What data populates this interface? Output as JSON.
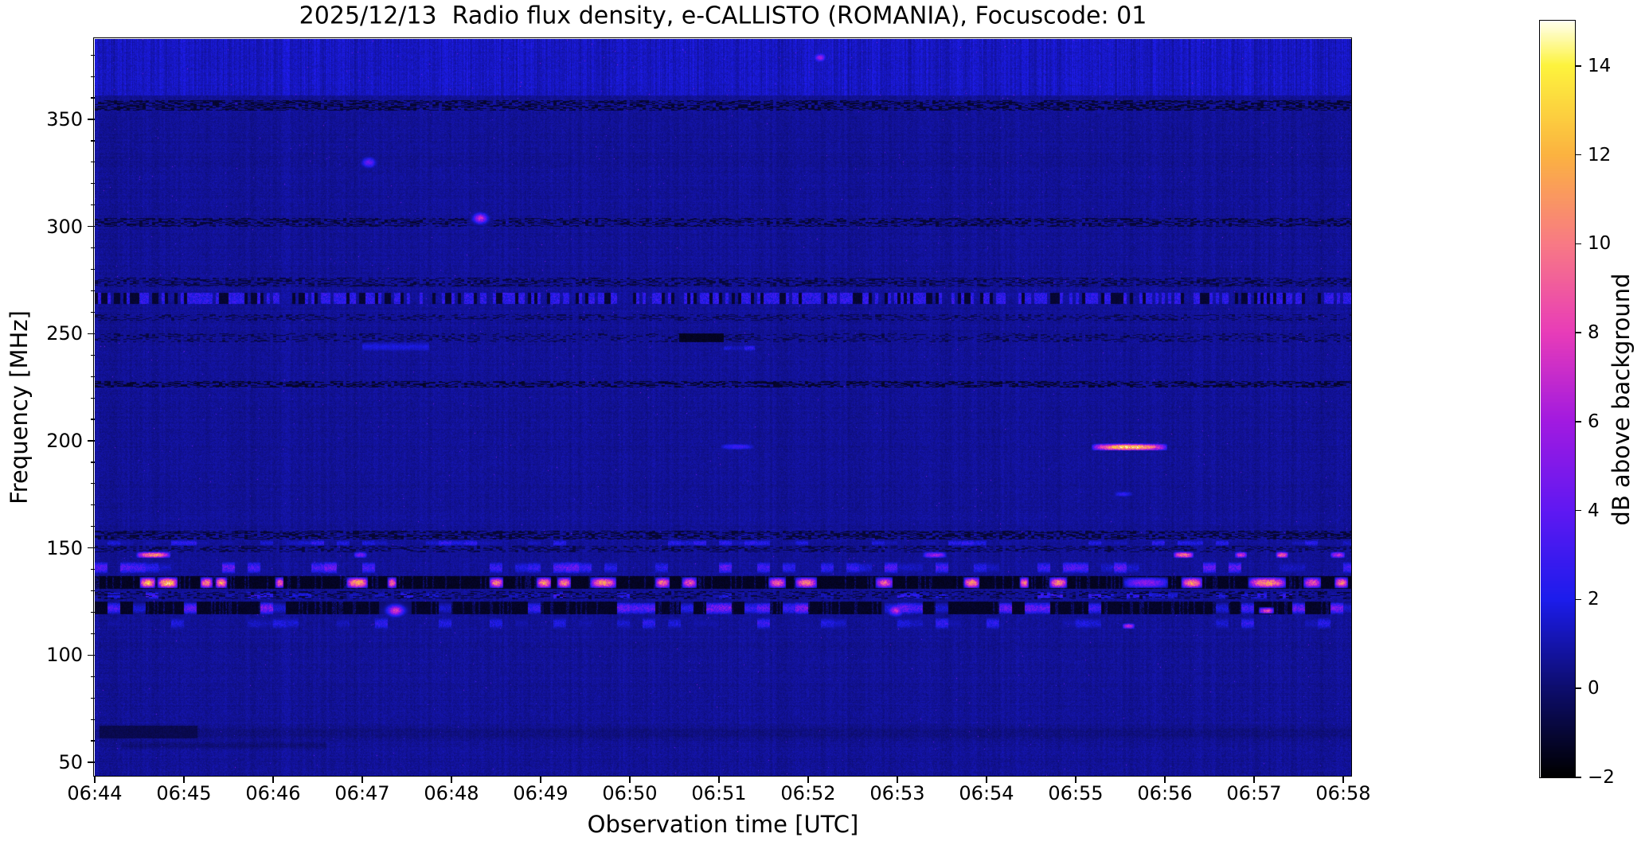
{
  "figure": {
    "title": "2025/12/13  Radio flux density, e-CALLISTO (ROMANIA), Focuscode: 01",
    "xlabel": "Observation time [UTC]",
    "ylabel": "Frequency [MHz]",
    "colorbar_label": "dB above background"
  },
  "chart_data": {
    "type": "heatmap",
    "subtype": "radio-spectrogram",
    "title": "2025/12/13  Radio flux density, e-CALLISTO (ROMANIA), Focuscode: 01",
    "xlabel": "Observation time [UTC]",
    "ylabel": "Frequency [MHz]",
    "colorbar_label": "dB above background",
    "x_tick_labels": [
      "06:44",
      "06:45",
      "06:46",
      "06:47",
      "06:48",
      "06:49",
      "06:50",
      "06:51",
      "06:52",
      "06:53",
      "06:54",
      "06:55",
      "06:56",
      "06:57",
      "06:58"
    ],
    "x_range_minutes_after_0644": [
      0,
      14.09
    ],
    "y_ticks_mhz": [
      50,
      100,
      150,
      200,
      250,
      300,
      350
    ],
    "y_minor_step_mhz": 10,
    "y_range_mhz": [
      43.7,
      387.5
    ],
    "grid": false,
    "colorbar": {
      "ticks": [
        -2,
        0,
        2,
        4,
        6,
        8,
        10,
        12,
        14
      ],
      "range": [
        -2,
        15
      ],
      "side": "right"
    },
    "colormap": {
      "name": "gnuplot2-like",
      "stops": [
        [
          0.0,
          "#000000"
        ],
        [
          0.118,
          "#0d0d6e"
        ],
        [
          0.235,
          "#1c1cec"
        ],
        [
          0.353,
          "#6018f2"
        ],
        [
          0.471,
          "#a21ae0"
        ],
        [
          0.588,
          "#e83cb8"
        ],
        [
          0.706,
          "#f87a84"
        ],
        [
          0.824,
          "#fbb340"
        ],
        [
          0.941,
          "#fdf33d"
        ],
        [
          1.0,
          "#ffffee"
        ]
      ]
    },
    "background_noise_db": {
      "mean": 0.45,
      "spread": 0.7,
      "striated_columns": true
    },
    "features": [
      {
        "kind": "glow",
        "name": "striated-bright-band-top",
        "f": [
          361,
          387.5
        ],
        "t": [
          0,
          14.09
        ],
        "level": 0.75
      },
      {
        "kind": "dashrow",
        "name": "dark-speckle-line-357MHz",
        "f": [
          354,
          359
        ],
        "t": [
          0,
          14.09
        ],
        "level": -1.3,
        "density": 0.5
      },
      {
        "kind": "dot",
        "name": "pink-speck",
        "t": 8.13,
        "f": 379,
        "level": 6,
        "rt": 0.04,
        "rf": 1.2
      },
      {
        "kind": "dashrow",
        "name": "rfi-line-302MHz",
        "f": [
          300,
          304
        ],
        "t": [
          0,
          14.09
        ],
        "level": -1.2,
        "density": 0.45
      },
      {
        "kind": "dot",
        "name": "magenta-dot-304MHz-0648",
        "t": 4.32,
        "f": 304,
        "level": 7.5,
        "rt": 0.05,
        "rf": 1.5
      },
      {
        "kind": "dot",
        "name": "blue-dot-330MHz-0647",
        "t": 3.07,
        "f": 330,
        "level": 4.5,
        "rt": 0.05,
        "rf": 1.5
      },
      {
        "kind": "dashrow",
        "name": "rfi-line-274MHz",
        "f": [
          272,
          276
        ],
        "t": [
          0,
          14.09
        ],
        "level": -1.1,
        "density": 0.4
      },
      {
        "kind": "noisy",
        "name": "rfi-line-267MHz-bright-dark-mix",
        "f": [
          264,
          269
        ],
        "t": [
          0,
          14.09
        ],
        "level": 2.6
      },
      {
        "kind": "dashrow",
        "name": "rfi-line-258MHz",
        "f": [
          256,
          259
        ],
        "t": [
          0,
          14.09
        ],
        "level": -0.9,
        "density": 0.3
      },
      {
        "kind": "dashrow",
        "name": "rfi-line-248MHz",
        "f": [
          246,
          250
        ],
        "t": [
          0,
          14.09
        ],
        "level": -1.0,
        "density": 0.25
      },
      {
        "kind": "dark",
        "name": "dark-dashes-248MHz-0650",
        "f": [
          246,
          250
        ],
        "t": [
          6.55,
          7.05
        ],
        "level": -1.6
      },
      {
        "kind": "smudge",
        "name": "blue-smudge-244MHz-0647",
        "f": [
          242,
          246
        ],
        "t": [
          3.0,
          3.75
        ],
        "level": 1.1
      },
      {
        "kind": "blobrow",
        "name": "blue-dashes-244MHz-0651",
        "f": [
          242,
          245
        ],
        "t": [
          7.05,
          7.4
        ],
        "level": 1.6,
        "density": 0.8
      },
      {
        "kind": "dashrow",
        "name": "rfi-line-227MHz",
        "f": [
          225,
          228
        ],
        "t": [
          0,
          14.09
        ],
        "level": -1.4,
        "density": 0.5
      },
      {
        "kind": "burst",
        "name": "faint-blue-streak-197MHz-0651",
        "f": [
          196,
          199
        ],
        "t": [
          7.0,
          7.4
        ],
        "level": 3.0
      },
      {
        "kind": "burst",
        "name": "bright-orange-streak-197MHz-0655",
        "f": [
          195.5,
          199
        ],
        "t": [
          11.17,
          12.03
        ],
        "level": 13.5
      },
      {
        "kind": "burst",
        "name": "faint-echo-175MHz-0655",
        "f": [
          174,
          176.5
        ],
        "t": [
          11.42,
          11.64
        ],
        "level": 2.6
      },
      {
        "kind": "dashrow",
        "name": "rfi-band-156MHz",
        "f": [
          154,
          158
        ],
        "t": [
          0,
          14.09
        ],
        "level": -1.2,
        "density": 0.5
      },
      {
        "kind": "blobrow",
        "name": "rfi-band-152MHz-blue-speckle",
        "f": [
          151,
          154
        ],
        "t": [
          0,
          14.09
        ],
        "level": 1.8,
        "density": 0.5
      },
      {
        "kind": "dashrow",
        "name": "rfi-band-149MHz",
        "f": [
          148,
          151
        ],
        "t": [
          0,
          14.09
        ],
        "level": -1.0,
        "density": 0.35
      },
      {
        "kind": "burst_series",
        "name": "bursts-147MHz",
        "f": [
          145.5,
          148.5
        ],
        "bursts": [
          [
            0.46,
            0.85,
            11
          ],
          [
            2.9,
            3.05,
            5
          ],
          [
            9.28,
            9.55,
            6
          ],
          [
            12.09,
            12.32,
            10.5
          ],
          [
            12.78,
            12.92,
            8
          ],
          [
            13.24,
            13.38,
            10
          ],
          [
            13.85,
            14.02,
            7
          ]
        ]
      },
      {
        "kind": "blobrow",
        "name": "purple-blob-band-141MHz",
        "f": [
          138,
          144
        ],
        "t": [
          0,
          14.09
        ],
        "level": 2.8,
        "density": 0.45
      },
      {
        "kind": "dark",
        "name": "black-band-134MHz",
        "f": [
          131,
          137
        ],
        "t": [
          0,
          14.09
        ],
        "level": -1.6,
        "ticks": true
      },
      {
        "kind": "burst_series",
        "name": "airband-bursts-134MHz",
        "f": [
          131.5,
          136.5
        ],
        "bursts": [
          [
            0.5,
            0.68,
            12.5
          ],
          [
            0.7,
            0.93,
            13.5
          ],
          [
            1.18,
            1.32,
            11
          ],
          [
            1.35,
            1.48,
            12
          ],
          [
            2.02,
            2.12,
            9.5
          ],
          [
            2.82,
            3.06,
            12.5
          ],
          [
            3.28,
            3.38,
            10
          ],
          [
            4.42,
            4.58,
            10.5
          ],
          [
            4.95,
            5.12,
            11.5
          ],
          [
            5.18,
            5.34,
            10.5
          ],
          [
            5.55,
            5.85,
            11
          ],
          [
            6.28,
            6.45,
            10
          ],
          [
            6.58,
            6.75,
            9
          ],
          [
            7.55,
            7.75,
            9.5
          ],
          [
            7.85,
            8.1,
            10.5
          ],
          [
            8.75,
            8.95,
            9
          ],
          [
            9.74,
            9.92,
            11
          ],
          [
            10.37,
            10.47,
            10.5
          ],
          [
            10.7,
            10.9,
            11
          ],
          [
            11.53,
            12.04,
            5.5
          ],
          [
            12.18,
            12.42,
            11
          ],
          [
            12.93,
            13.36,
            11.5
          ],
          [
            13.55,
            13.75,
            9
          ],
          [
            13.9,
            14.05,
            10.5
          ]
        ]
      },
      {
        "kind": "blobrow",
        "name": "speckle-band-128MHz",
        "f": [
          126,
          130
        ],
        "t": [
          0,
          14.09
        ],
        "level": 2.0,
        "density": 0.4
      },
      {
        "kind": "dashrow",
        "name": "dark-dashes-128MHz",
        "f": [
          126,
          130
        ],
        "t": [
          0,
          14.09
        ],
        "level": -1.2,
        "density": 0.3
      },
      {
        "kind": "dark",
        "name": "black-band-122MHz",
        "f": [
          119,
          125
        ],
        "t": [
          0,
          14.09
        ],
        "level": -1.5,
        "ticks": true
      },
      {
        "kind": "blobrow",
        "name": "purple-blobs-122MHz",
        "f": [
          119,
          125
        ],
        "t": [
          0,
          14.09
        ],
        "level": 3.2,
        "density": 0.3
      },
      {
        "kind": "dot",
        "name": "pink-dot-121MHz-0647",
        "t": 3.37,
        "f": 121,
        "level": 8,
        "rt": 0.06,
        "rf": 1.6
      },
      {
        "kind": "dot",
        "name": "pink-dot-121MHz-0652",
        "t": 8.98,
        "f": 121,
        "level": 7,
        "rt": 0.05,
        "rf": 1.5
      },
      {
        "kind": "burst",
        "name": "pink-dash-121MHz-0657",
        "f": [
          119.5,
          122.5
        ],
        "t": [
          13.05,
          13.22
        ],
        "level": 8.5
      },
      {
        "kind": "blobrow",
        "name": "faint-blobs-115MHz",
        "f": [
          112,
          118
        ],
        "t": [
          0,
          14.09
        ],
        "level": 1.8,
        "density": 0.35
      },
      {
        "kind": "burst",
        "name": "pink-dash-114MHz-0655",
        "f": [
          112.5,
          115
        ],
        "t": [
          11.52,
          11.66
        ],
        "level": 7
      },
      {
        "kind": "smudge",
        "name": "dark-smudge-64MHz",
        "f": [
          60,
          68
        ],
        "t": [
          0,
          14.09
        ],
        "level": -0.35
      },
      {
        "kind": "dark",
        "name": "dark-blobs-64MHz-left",
        "f": [
          61,
          67
        ],
        "t": [
          0.05,
          1.15
        ],
        "level": -0.8
      },
      {
        "kind": "smudge",
        "name": "dark-smudge-58MHz-left",
        "f": [
          56,
          60
        ],
        "t": [
          0.3,
          2.6
        ],
        "level": -0.45
      }
    ]
  }
}
